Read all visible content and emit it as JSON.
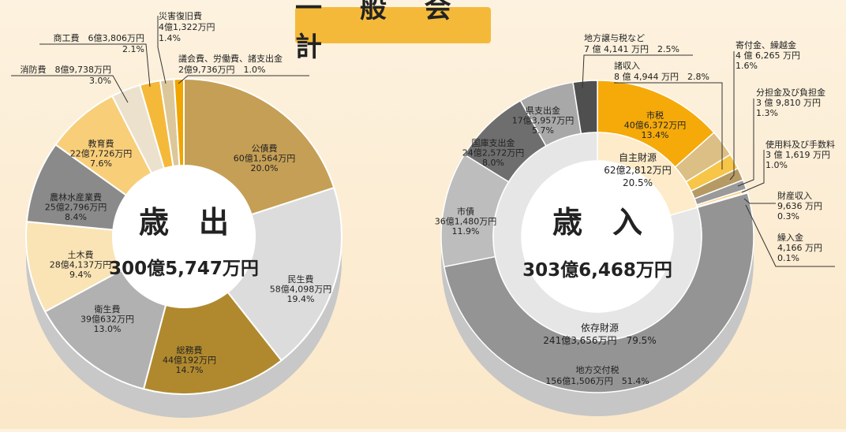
{
  "page_title": "一 般 会 計",
  "colors": {
    "background": "#fbe8c9",
    "title_bg": "#f5b93a",
    "leader": "#333333"
  },
  "chart_data": [
    {
      "type": "pie",
      "center_title": "歳　出",
      "center_total": "300億5,747万円",
      "slices": [
        {
          "name": "公債費",
          "amount": "60億1,564万円",
          "percent": 20.0,
          "pct_label": "20.0%",
          "color": "#c59f55"
        },
        {
          "name": "民生費",
          "amount": "58億4,098万円",
          "percent": 19.4,
          "pct_label": "19.4%",
          "color": "#dcdcdc"
        },
        {
          "name": "総務費",
          "amount": "44億192万円",
          "percent": 14.7,
          "pct_label": "14.7%",
          "color": "#b0892e"
        },
        {
          "name": "衛生費",
          "amount": "39億632万円",
          "percent": 13.0,
          "pct_label": "13.0%",
          "color": "#b1b1b1"
        },
        {
          "name": "土木費",
          "amount": "28億4,137万円",
          "percent": 9.4,
          "pct_label": "9.4%",
          "color": "#fae4b5"
        },
        {
          "name": "農林水産業費",
          "amount": "25億2,796万円",
          "percent": 8.4,
          "pct_label": "8.4%",
          "color": "#8a8a8a"
        },
        {
          "name": "教育費",
          "amount": "22億7,726万円",
          "percent": 7.6,
          "pct_label": "7.6%",
          "color": "#f8ce79"
        },
        {
          "name": "消防費",
          "amount": "8億9,738万円",
          "percent": 3.0,
          "pct_label": "3.0%",
          "color": "#ece1cc"
        },
        {
          "name": "商工費",
          "amount": "6億3,806万円",
          "percent": 2.1,
          "pct_label": "2.1%",
          "color": "#f5b93a"
        },
        {
          "name": "災害復旧費",
          "amount": "4億1,322万円",
          "percent": 1.4,
          "pct_label": "1.4%",
          "color": "#dcc79a"
        },
        {
          "name": "議会費、労働費、諸支出金",
          "amount": "2億9,736万円",
          "percent": 1.0,
          "pct_label": "1.0%",
          "color": "#f0a500"
        }
      ]
    },
    {
      "type": "pie",
      "center_title": "歳　入",
      "center_total": "303億6,468万円",
      "inner_ring": [
        {
          "name": "自主財源",
          "amount": "62億2,812万円",
          "percent": 20.5,
          "pct_label": "20.5%",
          "color": "#fdebc9"
        },
        {
          "name": "依存財源",
          "amount": "241億3,656万円",
          "percent": 79.5,
          "pct_label": "79.5%",
          "color": "#e6e6e6"
        }
      ],
      "slices": [
        {
          "name": "市税",
          "amount": "40億6,372万円",
          "percent": 13.4,
          "pct_label": "13.4%",
          "color": "#f5aa0a"
        },
        {
          "name": "諸収入",
          "amount": "8 億 4,944 万円",
          "percent": 2.8,
          "pct_label": "2.8%",
          "color": "#dbbf84"
        },
        {
          "name": "寄付金、繰越金",
          "amount": "4 億 6,265 万円",
          "percent": 1.6,
          "pct_label": "1.6%",
          "color": "#f7c548"
        },
        {
          "name": "分担金及び負担金",
          "amount": "3 億 9,810 万円",
          "percent": 1.3,
          "pct_label": "1.3%",
          "color": "#b69a64"
        },
        {
          "name": "使用料及び手数料",
          "amount": "3 億 1,619 万円",
          "percent": 1.0,
          "pct_label": "1.0%",
          "color": "#9a9a9a"
        },
        {
          "name": "財産収入",
          "amount": "9,636 万円",
          "percent": 0.3,
          "pct_label": "0.3%",
          "color": "#fbd28a"
        },
        {
          "name": "繰入金",
          "amount": "4,166 万円",
          "percent": 0.1,
          "pct_label": "0.1%",
          "color": "#e8b03c"
        },
        {
          "name": "地方交付税",
          "amount": "156億1,506万円",
          "percent": 51.4,
          "pct_label": "51.4%",
          "color": "#949494"
        },
        {
          "name": "市債",
          "amount": "36億1,480万円",
          "percent": 11.9,
          "pct_label": "11.9%",
          "color": "#bdbdbd"
        },
        {
          "name": "国庫支出金",
          "amount": "24億2,572万円",
          "percent": 8.0,
          "pct_label": "8.0%",
          "color": "#6e6e6e"
        },
        {
          "name": "県支出金",
          "amount": "17億3,957万円",
          "percent": 5.7,
          "pct_label": "5.7%",
          "color": "#a8a8a8"
        },
        {
          "name": "地方譲与税など",
          "amount": "7 億 4,141 万円",
          "percent": 2.5,
          "pct_label": "2.5%",
          "color": "#4f4f4f"
        }
      ]
    }
  ]
}
